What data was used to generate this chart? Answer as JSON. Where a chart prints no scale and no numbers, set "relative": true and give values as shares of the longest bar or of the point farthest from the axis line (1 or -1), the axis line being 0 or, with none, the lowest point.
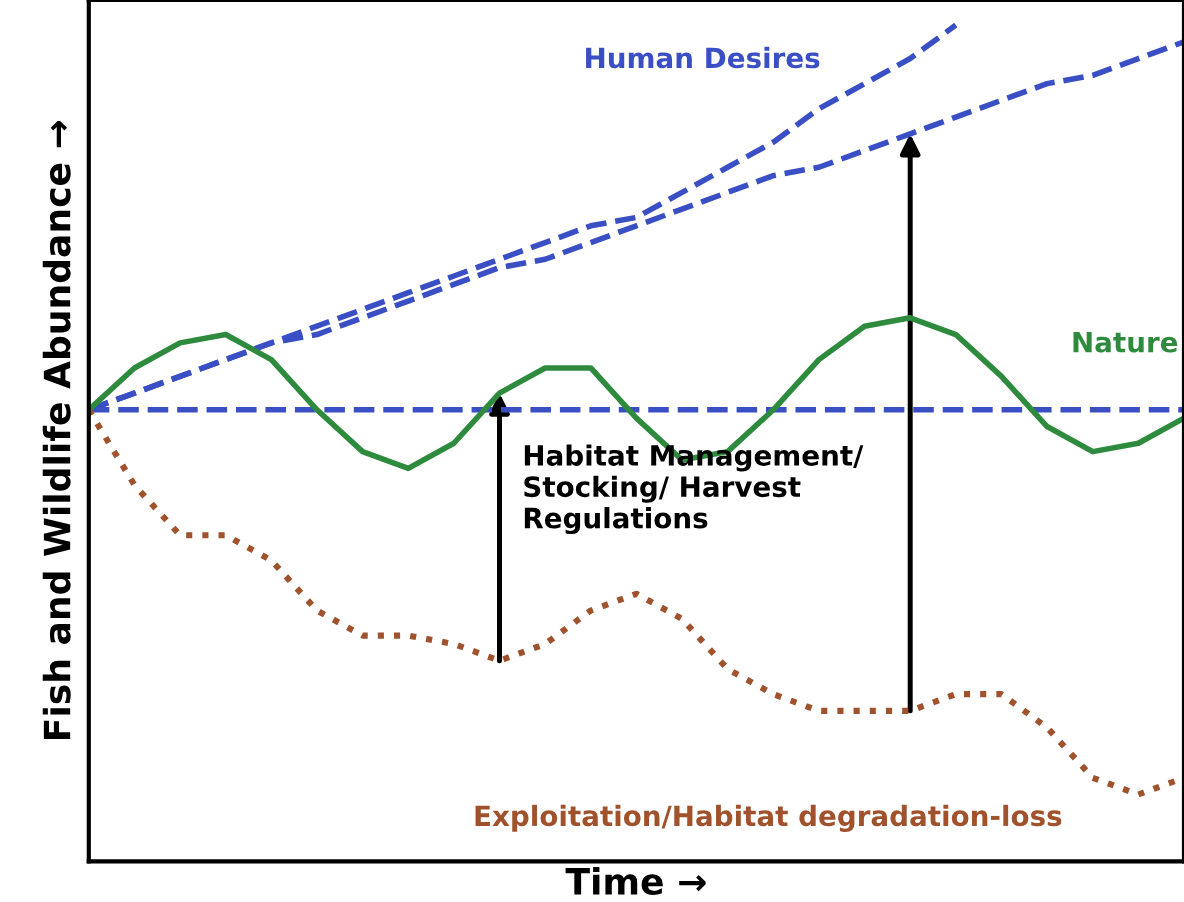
{
  "chart_data": {
    "type": "line",
    "relative": true,
    "xlabel": "Time →",
    "ylabel": "Fish and Wildlife Abundance →",
    "categories": [
      null,
      null,
      null,
      null,
      null,
      null,
      null,
      null,
      null,
      null,
      null,
      null,
      null,
      null,
      null,
      null,
      null,
      null,
      null,
      null,
      null,
      null,
      null,
      null,
      null
    ],
    "series": [
      {
        "name": "Human Desires",
        "color": "#3a4fc4",
        "line_style": "dashed",
        "values": [
          0.54,
          0.56,
          0.58,
          0.6,
          0.62,
          0.64,
          0.66,
          0.68,
          0.7,
          0.72,
          0.74,
          0.76,
          0.77,
          0.8,
          0.83,
          0.86,
          0.9,
          0.93,
          0.96,
          1.0,
          null,
          null,
          null,
          null,
          null
        ]
      },
      {
        "color": "#3a4fc4",
        "line_style": "dashed",
        "values": [
          0.54,
          0.56,
          0.58,
          0.6,
          0.62,
          0.63,
          0.65,
          0.67,
          0.69,
          0.71,
          0.72,
          0.74,
          0.76,
          0.78,
          0.8,
          0.82,
          0.83,
          0.85,
          0.87,
          0.89,
          0.91,
          0.93,
          0.94,
          0.96,
          0.98
        ]
      },
      {
        "color": "#3a4fc4",
        "line_style": "dashed",
        "values": [
          0.54,
          0.54,
          0.54,
          0.54,
          0.54,
          0.54,
          0.54,
          0.54,
          0.54,
          0.54,
          0.54,
          0.54,
          0.54,
          0.54,
          0.54,
          0.54,
          0.54,
          0.54,
          0.54,
          0.54,
          0.54,
          0.54,
          0.54,
          0.54,
          0.54
        ]
      },
      {
        "name": "Nature",
        "color": "#2e8b3e",
        "line_style": "solid",
        "values": [
          0.54,
          0.59,
          0.62,
          0.63,
          0.6,
          0.54,
          0.49,
          0.47,
          0.5,
          0.56,
          0.59,
          0.59,
          0.53,
          0.48,
          0.49,
          0.54,
          0.6,
          0.64,
          0.65,
          0.63,
          0.58,
          0.52,
          0.49,
          0.5,
          0.53
        ]
      },
      {
        "name": "Exploitation/Habitat degradation-loss",
        "color": "#a0522d",
        "line_style": "dotted",
        "values": [
          0.54,
          0.45,
          0.39,
          0.39,
          0.36,
          0.3,
          0.27,
          0.27,
          0.26,
          0.24,
          0.26,
          0.3,
          0.32,
          0.29,
          0.23,
          0.2,
          0.18,
          0.18,
          0.18,
          0.2,
          0.2,
          0.16,
          0.1,
          0.08,
          0.1
        ]
      }
    ],
    "annotations": [
      "Habitat Management/\nStocking/ Harvest\nRegulations"
    ]
  }
}
